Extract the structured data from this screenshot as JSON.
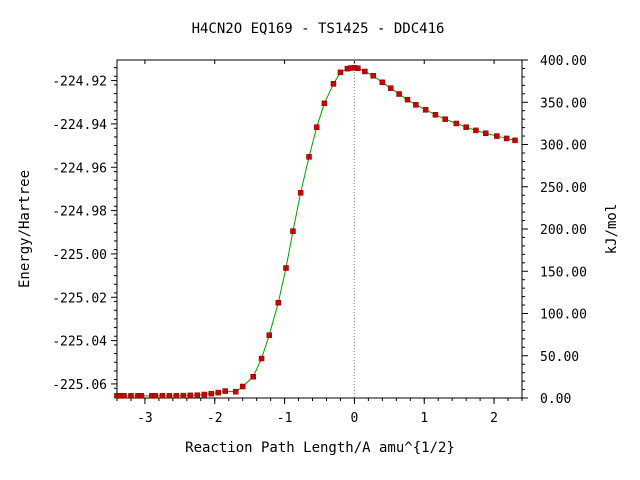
{
  "chart_data": {
    "type": "line",
    "title": "H4CN2O   EQ169 - TS1425 - DDC416",
    "xlabel": "Reaction Path Length/A amu^{1/2}",
    "ylabel_left": "Energy/Hartree",
    "ylabel_right": "kJ/mol",
    "xlim": [
      -3.4,
      2.4
    ],
    "ylim_left": [
      -225.0665,
      -224.9105
    ],
    "ylim_right": [
      0,
      400
    ],
    "x_ticks": [
      -3,
      -2,
      -1,
      0,
      1,
      2
    ],
    "x_tick_labels": [
      "-3",
      "-2",
      "-1",
      "0",
      "1",
      "2"
    ],
    "y_left_ticks": [
      -224.92,
      -224.94,
      -224.96,
      -224.98,
      -225.0,
      -225.02,
      -225.04,
      -225.06
    ],
    "y_left_tick_labels": [
      "-224.92",
      "-224.94",
      "-224.96",
      "-224.98",
      "-225.00",
      "-225.02",
      "-225.04",
      "-225.06"
    ],
    "y_right_ticks": [
      0,
      50,
      100,
      150,
      200,
      250,
      300,
      350,
      400
    ],
    "y_right_tick_labels": [
      "0.00",
      "50.00",
      "100.00",
      "150.00",
      "200.00",
      "250.00",
      "300.00",
      "350.00",
      "400.00"
    ],
    "ts_marker_x": 0,
    "grid": false,
    "legend": "none",
    "series": [
      {
        "line_color": "#00a000",
        "marker_color": "#cc0000",
        "points": [
          [
            -3.4,
            -225.0655
          ],
          [
            -3.35,
            -225.0655
          ],
          [
            -3.3,
            -225.0655
          ],
          [
            -3.2,
            -225.0655
          ],
          [
            -3.1,
            -225.0655
          ],
          [
            -3.05,
            -225.0655
          ],
          [
            -2.9,
            -225.0655
          ],
          [
            -2.85,
            -225.0655
          ],
          [
            -2.75,
            -225.0655
          ],
          [
            -2.65,
            -225.0655
          ],
          [
            -2.55,
            -225.0655
          ],
          [
            -2.45,
            -225.0654
          ],
          [
            -2.35,
            -225.0653
          ],
          [
            -2.25,
            -225.0652
          ],
          [
            -2.15,
            -225.0649
          ],
          [
            -2.05,
            -225.0645
          ],
          [
            -1.95,
            -225.064
          ],
          [
            -1.85,
            -225.0633
          ],
          [
            -1.7,
            -225.0636
          ],
          [
            -1.6,
            -225.0612
          ],
          [
            -1.45,
            -225.0567
          ],
          [
            -1.33,
            -225.0483
          ],
          [
            -1.22,
            -225.0375
          ],
          [
            -1.09,
            -225.0225
          ],
          [
            -0.98,
            -225.0065
          ],
          [
            -0.88,
            -224.9895
          ],
          [
            -0.77,
            -224.9718
          ],
          [
            -0.65,
            -224.9552
          ],
          [
            -0.54,
            -224.9415
          ],
          [
            -0.43,
            -224.9305
          ],
          [
            -0.3,
            -224.9215
          ],
          [
            -0.2,
            -224.9162
          ],
          [
            -0.1,
            -224.9145
          ],
          [
            -0.05,
            -224.9142
          ],
          [
            0.0,
            -224.9141
          ],
          [
            0.05,
            -224.9143
          ],
          [
            0.15,
            -224.9158
          ],
          [
            0.27,
            -224.9178
          ],
          [
            0.4,
            -224.9208
          ],
          [
            0.52,
            -224.9235
          ],
          [
            0.64,
            -224.9262
          ],
          [
            0.76,
            -224.9288
          ],
          [
            0.88,
            -224.9312
          ],
          [
            1.02,
            -224.9335
          ],
          [
            1.16,
            -224.9358
          ],
          [
            1.3,
            -224.9378
          ],
          [
            1.46,
            -224.9398
          ],
          [
            1.6,
            -224.9415
          ],
          [
            1.74,
            -224.943
          ],
          [
            1.88,
            -224.9443
          ],
          [
            2.04,
            -224.9456
          ],
          [
            2.18,
            -224.9467
          ],
          [
            2.3,
            -224.9476
          ]
        ]
      }
    ]
  }
}
